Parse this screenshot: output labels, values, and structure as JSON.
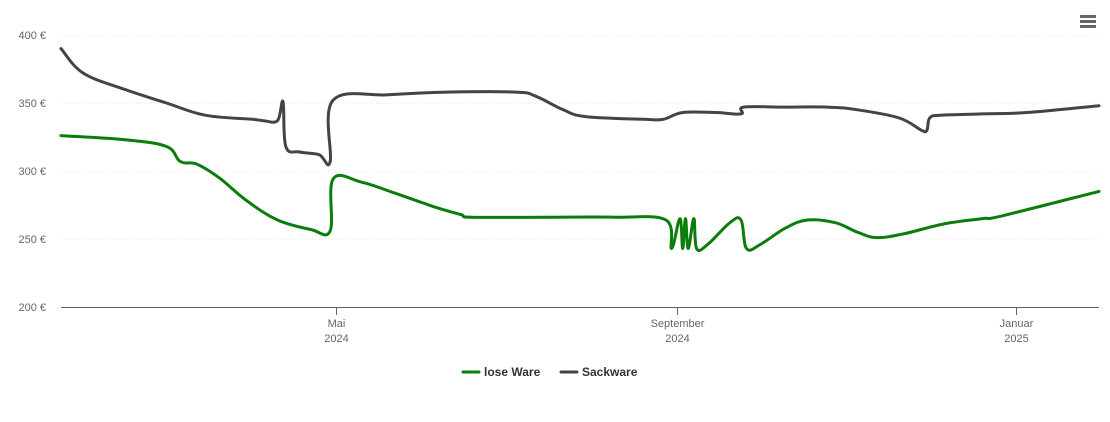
{
  "menu": {
    "icon": "hamburger-menu-icon"
  },
  "chart_data": {
    "type": "line",
    "title": "",
    "xlabel": "",
    "ylabel": "",
    "ylim": [
      200,
      400
    ],
    "yticks": [
      {
        "value": 200,
        "label": "200 €"
      },
      {
        "value": 250,
        "label": "250 €"
      },
      {
        "value": 300,
        "label": "300 €"
      },
      {
        "value": 350,
        "label": "350 €"
      },
      {
        "value": 400,
        "label": "400 €"
      }
    ],
    "xlim": [
      "2024-01-23",
      "2025-01-31"
    ],
    "xticks": [
      {
        "date": "2024-05-01",
        "month": "Mai",
        "year": "2024"
      },
      {
        "date": "2024-09-01",
        "month": "September",
        "year": "2024"
      },
      {
        "date": "2025-01-01",
        "month": "Januar",
        "year": "2025"
      }
    ],
    "grid": true,
    "legend_position": "bottom-center",
    "series": [
      {
        "name": "lose Ware",
        "color": "#0a7d0a",
        "points": [
          [
            "2024-01-23",
            326
          ],
          [
            "2024-02-15",
            323
          ],
          [
            "2024-03-01",
            318
          ],
          [
            "2024-03-06",
            307
          ],
          [
            "2024-03-12",
            305
          ],
          [
            "2024-03-20",
            295
          ],
          [
            "2024-03-30",
            278
          ],
          [
            "2024-04-10",
            264
          ],
          [
            "2024-04-22",
            257
          ],
          [
            "2024-04-29",
            256
          ],
          [
            "2024-04-30",
            294
          ],
          [
            "2024-05-10",
            292
          ],
          [
            "2024-05-22",
            284
          ],
          [
            "2024-06-05",
            274
          ],
          [
            "2024-06-15",
            268
          ],
          [
            "2024-06-19",
            266
          ],
          [
            "2024-07-15",
            266
          ],
          [
            "2024-08-10",
            266
          ],
          [
            "2024-08-28",
            264
          ],
          [
            "2024-08-30",
            243
          ],
          [
            "2024-09-02",
            265
          ],
          [
            "2024-09-03",
            243
          ],
          [
            "2024-09-04",
            265
          ],
          [
            "2024-09-05",
            243
          ],
          [
            "2024-09-07",
            265
          ],
          [
            "2024-09-08",
            243
          ],
          [
            "2024-09-12",
            246
          ],
          [
            "2024-09-20",
            262
          ],
          [
            "2024-09-24",
            264
          ],
          [
            "2024-09-26",
            243
          ],
          [
            "2024-10-01",
            246
          ],
          [
            "2024-10-10",
            258
          ],
          [
            "2024-10-18",
            264
          ],
          [
            "2024-10-28",
            262
          ],
          [
            "2024-11-05",
            255
          ],
          [
            "2024-11-12",
            251
          ],
          [
            "2024-11-22",
            254
          ],
          [
            "2024-12-06",
            261
          ],
          [
            "2024-12-20",
            265
          ],
          [
            "2024-12-27",
            267
          ],
          [
            "2025-01-31",
            285
          ]
        ]
      },
      {
        "name": "Sackware",
        "color": "#434348",
        "points": [
          [
            "2024-01-23",
            390
          ],
          [
            "2024-01-31",
            372
          ],
          [
            "2024-02-15",
            360
          ],
          [
            "2024-03-01",
            350
          ],
          [
            "2024-03-15",
            341
          ],
          [
            "2024-04-01",
            338
          ],
          [
            "2024-04-05",
            337
          ],
          [
            "2024-04-10",
            337
          ],
          [
            "2024-04-12",
            351
          ],
          [
            "2024-04-13",
            318
          ],
          [
            "2024-04-18",
            314
          ],
          [
            "2024-04-25",
            312
          ],
          [
            "2024-04-29",
            307
          ],
          [
            "2024-04-30",
            352
          ],
          [
            "2024-05-20",
            356
          ],
          [
            "2024-06-10",
            358
          ],
          [
            "2024-07-05",
            358
          ],
          [
            "2024-07-12",
            355
          ],
          [
            "2024-07-22",
            345
          ],
          [
            "2024-07-30",
            340
          ],
          [
            "2024-08-20",
            338
          ],
          [
            "2024-08-27",
            338
          ],
          [
            "2024-09-03",
            343
          ],
          [
            "2024-09-15",
            343
          ],
          [
            "2024-09-24",
            342
          ],
          [
            "2024-09-25",
            347
          ],
          [
            "2024-10-10",
            347
          ],
          [
            "2024-10-25",
            347
          ],
          [
            "2024-11-05",
            345
          ],
          [
            "2024-11-20",
            339
          ],
          [
            "2024-11-28",
            330
          ],
          [
            "2024-11-30",
            330
          ],
          [
            "2024-12-01",
            339
          ],
          [
            "2024-12-05",
            341
          ],
          [
            "2024-12-20",
            342
          ],
          [
            "2025-01-05",
            343
          ],
          [
            "2025-01-31",
            348
          ]
        ]
      }
    ]
  }
}
